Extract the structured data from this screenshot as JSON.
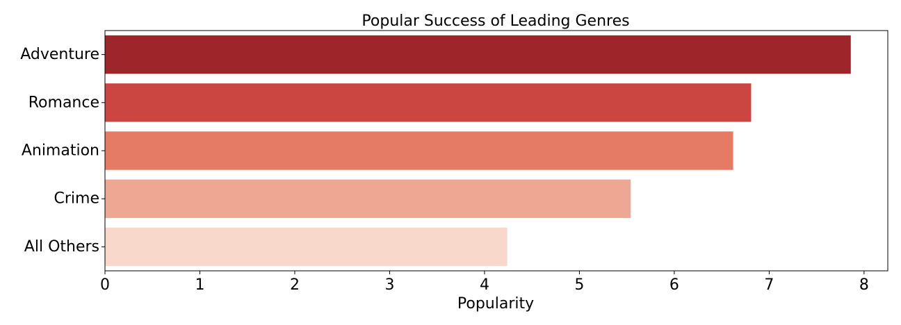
{
  "chart_data": {
    "type": "bar",
    "orientation": "horizontal",
    "title": "Popular Success of Leading Genres",
    "xlabel": "Popularity",
    "ylabel": "",
    "categories": [
      "Adventure",
      "Romance",
      "Animation",
      "Crime",
      "All Others"
    ],
    "values": [
      7.86,
      6.81,
      6.62,
      5.54,
      4.24
    ],
    "colors": [
      "#9E262B",
      "#CC4641",
      "#E67B65",
      "#EDA792",
      "#F7D8CB"
    ],
    "xlim": [
      0,
      8.25
    ],
    "xticks": [
      0,
      1,
      2,
      3,
      4,
      5,
      6,
      7,
      8
    ],
    "grid": false,
    "legend": "none"
  }
}
